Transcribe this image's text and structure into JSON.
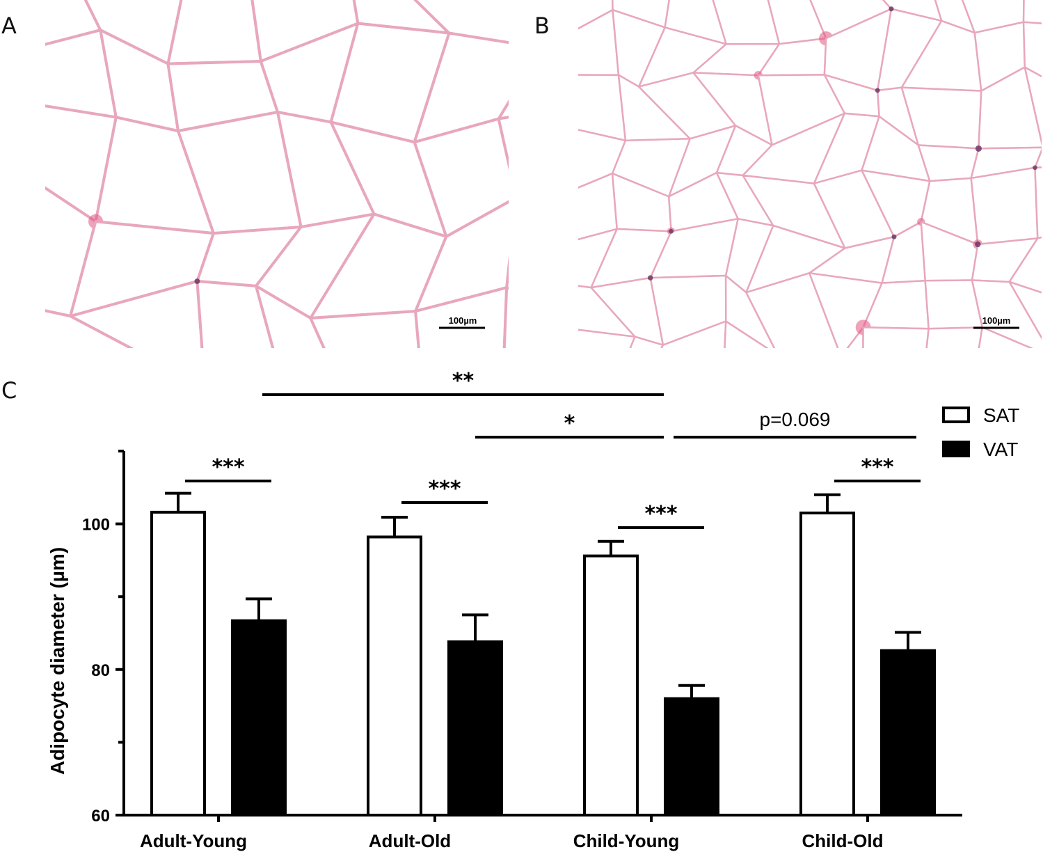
{
  "panels": {
    "a": {
      "letter": "A",
      "scalebar": "100µm"
    },
    "b": {
      "letter": "B",
      "scalebar": "100µm"
    },
    "c": {
      "letter": "C"
    }
  },
  "colors": {
    "stain_membrane": "#e8a7bd",
    "stain_nucleus": "#5a2a55",
    "stain_dense": "#e2557f"
  },
  "chart_data": {
    "type": "bar",
    "categories": [
      "Adult-Young",
      "Adult-Old",
      "Child-Young",
      "Child-Old"
    ],
    "series": [
      {
        "name": "SAT",
        "values": [
          101.6,
          98.2,
          95.6,
          101.5
        ],
        "errors": [
          2.6,
          2.7,
          2.0,
          2.5
        ],
        "fill": "#ffffff"
      },
      {
        "name": "VAT",
        "values": [
          86.7,
          83.8,
          76.0,
          82.6
        ],
        "errors": [
          3.0,
          3.7,
          1.8,
          2.5
        ],
        "fill": "#000000"
      }
    ],
    "xlabel": "",
    "ylabel": "Adipocyte diameter (µm)",
    "ylim": [
      60,
      110
    ],
    "yticks": [
      60,
      80,
      100
    ],
    "grid": false,
    "legend": "top-right",
    "annotations": [
      {
        "label": "***",
        "from": "Adult-Young SAT",
        "to": "Adult-Young VAT"
      },
      {
        "label": "***",
        "from": "Adult-Old SAT",
        "to": "Adult-Old VAT"
      },
      {
        "label": "***",
        "from": "Child-Young SAT",
        "to": "Child-Young VAT"
      },
      {
        "label": "***",
        "from": "Child-Old SAT",
        "to": "Child-Old VAT"
      },
      {
        "label": "**",
        "from": "Adult-Young VAT",
        "to": "Child-Young VAT"
      },
      {
        "label": "*",
        "from": "Adult-Old VAT",
        "to": "Child-Young VAT"
      },
      {
        "label": "p=0.069",
        "from": "Child-Young VAT",
        "to": "Child-Old VAT"
      }
    ]
  }
}
